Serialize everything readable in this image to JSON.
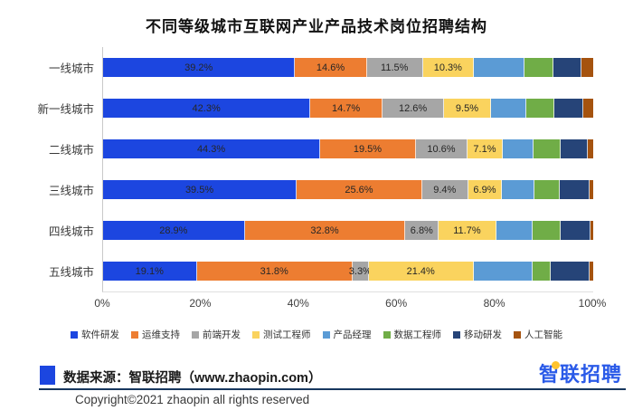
{
  "title": "不同等级城市互联网产业产品技术岗位招聘结构",
  "chart_data": {
    "type": "bar",
    "orientation": "horizontal-stacked",
    "title": "不同等级城市互联网产业产品技术岗位招聘结构",
    "xlabel": "",
    "ylabel": "",
    "x_axis": {
      "min": 0,
      "max": 100,
      "ticks": [
        "0%",
        "20%",
        "40%",
        "60%",
        "80%",
        "100%"
      ]
    },
    "grid": false,
    "legend_position": "bottom",
    "value_label_color": "#262626",
    "categories": [
      "一线城市",
      "新一线城市",
      "二线城市",
      "三线城市",
      "四线城市",
      "五线城市"
    ],
    "series": [
      {
        "name": "软件研发",
        "color": "#1C46E0",
        "labeled": true,
        "values": [
          39.2,
          42.3,
          44.3,
          39.5,
          28.9,
          19.1
        ]
      },
      {
        "name": "运维支持",
        "color": "#ED7D31",
        "labeled": true,
        "values": [
          14.6,
          14.7,
          19.5,
          25.6,
          32.8,
          31.8
        ]
      },
      {
        "name": "前端开发",
        "color": "#A6A6A6",
        "labeled": true,
        "values": [
          11.5,
          12.6,
          10.6,
          9.4,
          6.8,
          3.3
        ]
      },
      {
        "name": "测试工程师",
        "color": "#FAD35E",
        "labeled": true,
        "values": [
          10.3,
          9.5,
          7.1,
          6.9,
          11.7,
          21.4
        ]
      },
      {
        "name": "产品经理",
        "color": "#5B9BD5",
        "labeled": false,
        "values": [
          10.3,
          7.3,
          6.4,
          6.6,
          7.4,
          12.0
        ]
      },
      {
        "name": "数据工程师",
        "color": "#70AD47",
        "labeled": false,
        "values": [
          6.0,
          5.7,
          5.4,
          5.2,
          5.7,
          3.8
        ]
      },
      {
        "name": "移动研发",
        "color": "#264478",
        "labeled": false,
        "values": [
          5.8,
          5.8,
          5.6,
          6.0,
          6.2,
          7.8
        ]
      },
      {
        "name": "人工智能",
        "color": "#A5530F",
        "labeled": false,
        "values": [
          2.3,
          2.1,
          1.1,
          0.8,
          0.5,
          0.8
        ]
      }
    ]
  },
  "footer": {
    "source_label": "数据来源：智联招聘（www.zhaopin.com）",
    "logo_text": "智联招聘",
    "copyright": "Copyright©2021 zhaopin all rights reserved"
  },
  "colors": {
    "accent_blue": "#1C46E0",
    "divider_navy": "#17375E",
    "logo_blue": "#2A5AE8",
    "logo_dot_yellow": "#FFC32E"
  }
}
